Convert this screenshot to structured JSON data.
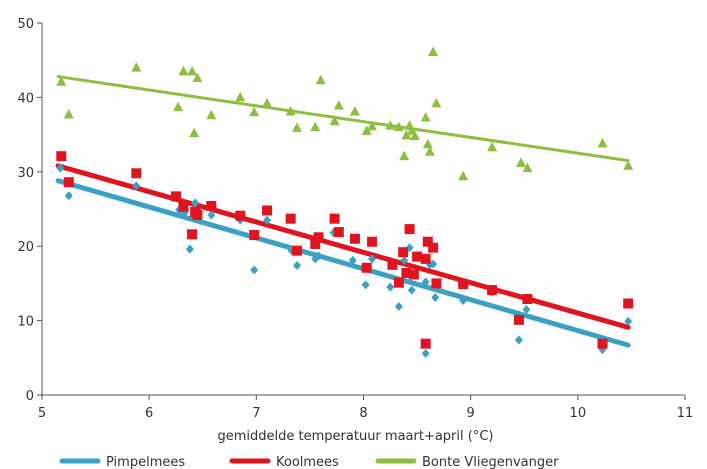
{
  "chart_data": {
    "type": "scatter",
    "title": "",
    "xlabel": "gemiddelde temperatuur maart+april (°C)",
    "ylabel": "",
    "xlim": [
      5,
      11
    ],
    "ylim": [
      0,
      50
    ],
    "x_ticks": [
      5,
      6,
      7,
      8,
      9,
      10,
      11
    ],
    "y_ticks": [
      0,
      10,
      20,
      30,
      40,
      50
    ],
    "grid": false,
    "legend_position": "bottom",
    "series": [
      {
        "name": "Pimpelmees",
        "color": "#3aa1c4",
        "marker": "diamond",
        "trendline": {
          "x": [
            5.15,
            10.47
          ],
          "y": [
            28.8,
            6.7
          ]
        },
        "points": [
          [
            5.17,
            30.5
          ],
          [
            5.25,
            26.8
          ],
          [
            5.88,
            28.1
          ],
          [
            6.28,
            24.9
          ],
          [
            6.33,
            24.5
          ],
          [
            6.38,
            19.6
          ],
          [
            6.43,
            25.8
          ],
          [
            6.58,
            24.2
          ],
          [
            6.85,
            23.5
          ],
          [
            6.98,
            16.8
          ],
          [
            7.1,
            23.5
          ],
          [
            7.33,
            19.4
          ],
          [
            7.38,
            17.4
          ],
          [
            7.55,
            18.3
          ],
          [
            7.58,
            18.7
          ],
          [
            7.72,
            21.8
          ],
          [
            7.9,
            18.1
          ],
          [
            8.02,
            14.8
          ],
          [
            8.08,
            18.3
          ],
          [
            8.25,
            14.5
          ],
          [
            8.33,
            11.9
          ],
          [
            8.38,
            18.1
          ],
          [
            8.43,
            19.8
          ],
          [
            8.45,
            14.1
          ],
          [
            8.58,
            15.2
          ],
          [
            8.58,
            5.6
          ],
          [
            8.62,
            17.5
          ],
          [
            8.65,
            17.6
          ],
          [
            8.67,
            13.1
          ],
          [
            8.93,
            12.7
          ],
          [
            9.2,
            13.8
          ],
          [
            9.45,
            7.4
          ],
          [
            9.52,
            11.5
          ],
          [
            10.23,
            6.1
          ],
          [
            10.47,
            9.9
          ]
        ]
      },
      {
        "name": "Koolmees",
        "color": "#e0141e",
        "marker": "square",
        "trendline": {
          "x": [
            5.15,
            10.47
          ],
          "y": [
            30.8,
            9.1
          ]
        },
        "points": [
          [
            5.18,
            32.1
          ],
          [
            5.25,
            28.6
          ],
          [
            5.88,
            29.8
          ],
          [
            6.25,
            26.7
          ],
          [
            6.32,
            25.3
          ],
          [
            6.4,
            21.6
          ],
          [
            6.43,
            24.6
          ],
          [
            6.45,
            24.2
          ],
          [
            6.58,
            25.4
          ],
          [
            6.85,
            24.1
          ],
          [
            6.98,
            21.5
          ],
          [
            7.1,
            24.8
          ],
          [
            7.32,
            23.7
          ],
          [
            7.38,
            19.4
          ],
          [
            7.55,
            20.3
          ],
          [
            7.58,
            21.2
          ],
          [
            7.73,
            23.7
          ],
          [
            7.77,
            21.9
          ],
          [
            7.92,
            21.0
          ],
          [
            8.03,
            17.1
          ],
          [
            8.08,
            20.6
          ],
          [
            8.27,
            17.5
          ],
          [
            8.33,
            15.1
          ],
          [
            8.37,
            19.2
          ],
          [
            8.4,
            16.4
          ],
          [
            8.43,
            22.3
          ],
          [
            8.47,
            16.2
          ],
          [
            8.5,
            18.6
          ],
          [
            8.58,
            18.3
          ],
          [
            8.58,
            6.9
          ],
          [
            8.6,
            20.6
          ],
          [
            8.65,
            19.8
          ],
          [
            8.68,
            15.0
          ],
          [
            8.93,
            14.9
          ],
          [
            9.2,
            14.1
          ],
          [
            9.45,
            10.1
          ],
          [
            9.53,
            12.9
          ],
          [
            10.23,
            6.9
          ],
          [
            10.47,
            12.3
          ]
        ]
      },
      {
        "name": "Bonte Vliegenvanger",
        "color": "#8cbf3f",
        "marker": "triangle",
        "trendline": {
          "x": [
            5.15,
            10.47
          ],
          "y": [
            42.8,
            31.5
          ]
        },
        "points": [
          [
            5.18,
            42.1
          ],
          [
            5.25,
            37.7
          ],
          [
            5.88,
            44.0
          ],
          [
            6.27,
            38.7
          ],
          [
            6.32,
            43.5
          ],
          [
            6.4,
            43.5
          ],
          [
            6.42,
            35.2
          ],
          [
            6.45,
            42.6
          ],
          [
            6.58,
            37.6
          ],
          [
            6.85,
            40.0
          ],
          [
            6.98,
            38.0
          ],
          [
            7.1,
            39.2
          ],
          [
            7.32,
            38.1
          ],
          [
            7.38,
            35.9
          ],
          [
            7.55,
            36.0
          ],
          [
            7.6,
            42.3
          ],
          [
            7.73,
            36.8
          ],
          [
            7.77,
            38.9
          ],
          [
            7.92,
            38.1
          ],
          [
            8.03,
            35.5
          ],
          [
            8.08,
            36.1
          ],
          [
            8.25,
            36.2
          ],
          [
            8.33,
            36.0
          ],
          [
            8.38,
            32.1
          ],
          [
            8.4,
            34.9
          ],
          [
            8.43,
            36.2
          ],
          [
            8.45,
            35.5
          ],
          [
            8.48,
            34.8
          ],
          [
            8.58,
            37.3
          ],
          [
            8.6,
            33.7
          ],
          [
            8.62,
            32.7
          ],
          [
            8.65,
            46.1
          ],
          [
            8.68,
            39.2
          ],
          [
            8.93,
            29.4
          ],
          [
            9.2,
            33.3
          ],
          [
            9.47,
            31.2
          ],
          [
            9.53,
            30.5
          ],
          [
            10.23,
            33.8
          ],
          [
            10.47,
            30.8
          ]
        ]
      }
    ]
  }
}
